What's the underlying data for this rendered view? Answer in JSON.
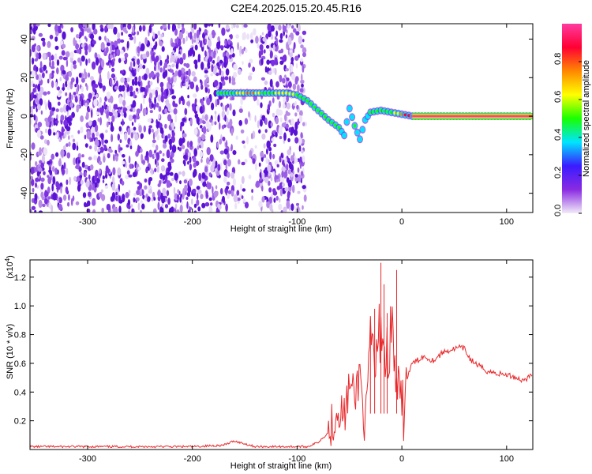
{
  "title": "C2E4.2025.015.20.45.R16",
  "chart_data": [
    {
      "type": "heatmap",
      "xlabel": "Height of straight line (km)",
      "ylabel": "Frequency (Hz)",
      "xlim": [
        -355,
        125
      ],
      "ylim": [
        -50,
        48
      ],
      "xticks": [
        -300,
        -200,
        -100,
        0,
        100
      ],
      "yticks": [
        -40,
        -20,
        0,
        20,
        40
      ],
      "grid": false,
      "colorbar": {
        "label": "Normalized spectral amplitude",
        "range": [
          0,
          1
        ],
        "ticks": [
          0.0,
          0.2,
          0.4,
          0.6,
          0.8
        ],
        "colors": [
          "#f2ecf8",
          "#8a2be2",
          "#3a1bff",
          "#00e5ff",
          "#19ff00",
          "#ffff00",
          "#ff8800",
          "#ff0033",
          "#ff3aa0"
        ]
      },
      "ridge": [
        {
          "x": -175,
          "y": 12,
          "amp": 0.5
        },
        {
          "x": -160,
          "y": 12,
          "amp": 0.55
        },
        {
          "x": -145,
          "y": 12,
          "amp": 0.75
        },
        {
          "x": -130,
          "y": 12,
          "amp": 0.45
        },
        {
          "x": -120,
          "y": 12,
          "amp": 0.6
        },
        {
          "x": -110,
          "y": 12,
          "amp": 0.65
        },
        {
          "x": -100,
          "y": 11,
          "amp": 0.55
        },
        {
          "x": -90,
          "y": 8,
          "amp": 0.5
        },
        {
          "x": -80,
          "y": 3,
          "amp": 0.5
        },
        {
          "x": -70,
          "y": -2,
          "amp": 0.45
        },
        {
          "x": -60,
          "y": -6,
          "amp": 0.45
        },
        {
          "x": -55,
          "y": -10,
          "amp": 0.4
        },
        {
          "x": -50,
          "y": 4,
          "amp": 0.35
        },
        {
          "x": -45,
          "y": -5,
          "amp": 0.45
        },
        {
          "x": -40,
          "y": -12,
          "amp": 0.4
        },
        {
          "x": -35,
          "y": -2,
          "amp": 0.35
        },
        {
          "x": -30,
          "y": 2,
          "amp": 0.5
        },
        {
          "x": -20,
          "y": 3,
          "amp": 0.45
        },
        {
          "x": -10,
          "y": 2,
          "amp": 0.55
        },
        {
          "x": 0,
          "y": 1,
          "amp": 0.75
        },
        {
          "x": 10,
          "y": 0,
          "amp": 0.95
        },
        {
          "x": 125,
          "y": 0,
          "amp": 0.95
        }
      ]
    },
    {
      "type": "line",
      "xlabel": "Height of straight line (km)",
      "ylabel": "SNR (10 * v/v)",
      "y_multiplier": "(x10",
      "y_multiplier_exp": "4",
      "y_multiplier_close": ")",
      "xlim": [
        -355,
        125
      ],
      "ylim": [
        0,
        1.32
      ],
      "xticks": [
        -300,
        -200,
        -100,
        0,
        100
      ],
      "yticks": [
        0.2,
        0.4,
        0.6,
        0.8,
        1.0,
        1.2
      ],
      "grid": false,
      "series": [
        {
          "color": "#e8282b",
          "x": [
            -355,
            -300,
            -250,
            -200,
            -170,
            -160,
            -150,
            -140,
            -120,
            -100,
            -90,
            -80,
            -70,
            -60,
            -55,
            -50,
            -45,
            -40,
            -35,
            -30,
            -25,
            -20,
            -15,
            -10,
            -5,
            0,
            5,
            10,
            15,
            20,
            30,
            40,
            50,
            55,
            60,
            65,
            70,
            80,
            90,
            100,
            110,
            115,
            120,
            125
          ],
          "y": [
            0.02,
            0.02,
            0.02,
            0.02,
            0.03,
            0.06,
            0.04,
            0.02,
            0.02,
            0.02,
            0.02,
            0.05,
            0.12,
            0.3,
            0.22,
            0.45,
            0.35,
            0.55,
            0.12,
            0.78,
            0.55,
            0.9,
            0.6,
            0.85,
            0.45,
            0.2,
            0.5,
            0.6,
            0.62,
            0.65,
            0.62,
            0.68,
            0.7,
            0.71,
            0.7,
            0.63,
            0.6,
            0.55,
            0.53,
            0.52,
            0.5,
            0.48,
            0.5,
            0.52
          ]
        }
      ]
    }
  ]
}
